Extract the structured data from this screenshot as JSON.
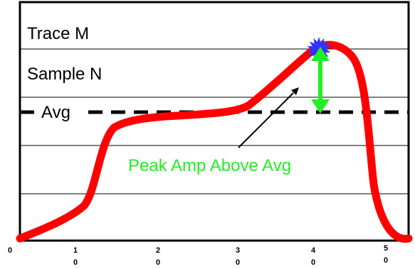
{
  "labels": {
    "trace": "Trace M",
    "sample": "Sample N",
    "avg": "Avg",
    "peak_annotation": "Peak Amp Above Avg"
  },
  "x_ticks": [
    {
      "top": "0",
      "bottom": ""
    },
    {
      "top": "1",
      "bottom": "0"
    },
    {
      "top": "2",
      "bottom": "0"
    },
    {
      "top": "3",
      "bottom": "0"
    },
    {
      "top": "4",
      "bottom": "0"
    },
    {
      "top": "5",
      "bottom": "0"
    }
  ],
  "colors": {
    "curve": "#ff0000",
    "peak_marker": "#3333ff",
    "arrow": "#22ee22",
    "avg_line": "#000000",
    "annotation_text": "#22ee22"
  }
}
